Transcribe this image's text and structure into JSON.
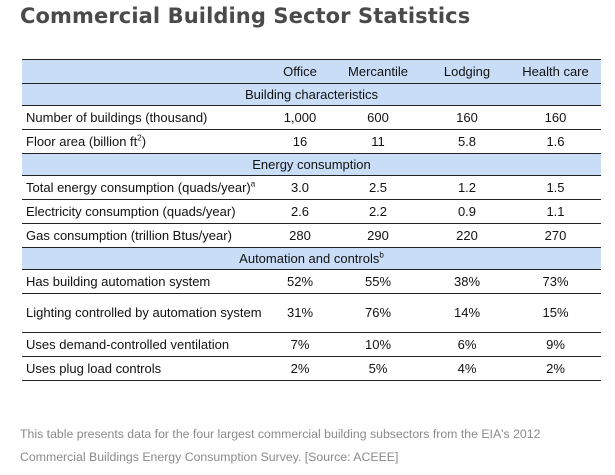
{
  "title": "Commercial Building Sector Statistics",
  "columns": [
    "Office",
    "Mercantile",
    "Lodging",
    "Health care"
  ],
  "sections": {
    "building": {
      "title": "Building characteristics",
      "rows": [
        {
          "label": "Number of buildings (thousand)",
          "values": [
            "1,000",
            "600",
            "160",
            "160"
          ]
        },
        {
          "label": "Floor area (billion ft",
          "label_sup": "2",
          "label_after": ")",
          "values": [
            "16",
            "11",
            "5.8",
            "1.6"
          ]
        }
      ]
    },
    "energy": {
      "title": "Energy consumption",
      "rows": [
        {
          "label": "Total energy consumption (quads/year)",
          "label_sup": "a",
          "values": [
            "3.0",
            "2.5",
            "1.2",
            "1.5"
          ]
        },
        {
          "label": "Electricity consumption (quads/year)",
          "values": [
            "2.6",
            "2.2",
            "0.9",
            "1.1"
          ]
        },
        {
          "label": "Gas consumption (trillion Btus/year)",
          "values": [
            "280",
            "290",
            "220",
            "270"
          ]
        }
      ]
    },
    "automation": {
      "title": "Automation and controls",
      "title_sup": "b",
      "rows": [
        {
          "label": "Has building automation system",
          "values": [
            "52%",
            "55%",
            "38%",
            "73%"
          ]
        },
        {
          "label": "Lighting controlled by automation system",
          "values": [
            "31%",
            "76%",
            "14%",
            "15%"
          ]
        },
        {
          "label": "Uses demand-controlled ventilation",
          "values": [
            "7%",
            "10%",
            "6%",
            "9%"
          ]
        },
        {
          "label": "Uses plug load controls",
          "values": [
            "2%",
            "5%",
            "4%",
            "2%"
          ]
        }
      ]
    }
  },
  "caption": "This table presents data for the four largest commercial building subsectors from the EIA's 2012 Commercial Buildings Energy Consumption Survey. [Source: ACEEE]",
  "colors": {
    "header_bg": "#c9ddf7",
    "title": "#4a4a4a",
    "caption": "#8a8a8a"
  }
}
